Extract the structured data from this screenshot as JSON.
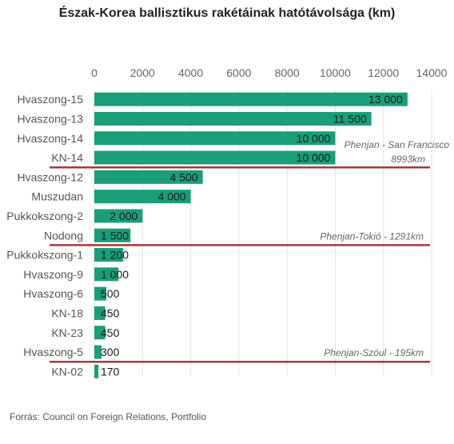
{
  "chart_data": {
    "type": "bar",
    "orientation": "horizontal",
    "title": "Észak-Korea ballisztikus rakétáinak hatótávolsága (km)",
    "xlim": [
      0,
      14000
    ],
    "x_ticks": [
      0,
      2000,
      4000,
      6000,
      8000,
      10000,
      12000,
      14000
    ],
    "x_axis_position": "top",
    "grid": true,
    "categories": [
      "Hvaszong-15",
      "Hvaszong-13",
      "Hvaszong-14",
      "KN-14",
      "Hvaszong-12",
      "Muszudan",
      "Pukkokszong-2",
      "Nodong",
      "Pukkokszong-1",
      "Hvaszong-9",
      "Hvaszong-6",
      "KN-18",
      "KN-23",
      "Hvaszong-5",
      "KN-02"
    ],
    "values": [
      13000,
      11500,
      10000,
      10000,
      4500,
      4000,
      2000,
      1500,
      1200,
      1000,
      500,
      450,
      450,
      300,
      170
    ],
    "value_labels": [
      "13 000",
      "11 500",
      "10 000",
      "10 000",
      "4 500",
      "4 000",
      "2 000",
      "1 500",
      "1 200",
      "1 000",
      "500",
      "450",
      "450",
      "300",
      "170"
    ],
    "bar_color": "#1a9e7a",
    "reference_color": "#a8373f",
    "reference_lines": [
      {
        "after_index": 3,
        "label": "Phenjan - San Francisco",
        "label2": "8993km"
      },
      {
        "after_index": 7,
        "label": "Phenjan-Tokió - 1291km"
      },
      {
        "after_index": 13,
        "label": "Phenjan-Szöul - 195km"
      }
    ]
  },
  "source": "Forrás:  Council on Foreign Relations, Portfolio"
}
